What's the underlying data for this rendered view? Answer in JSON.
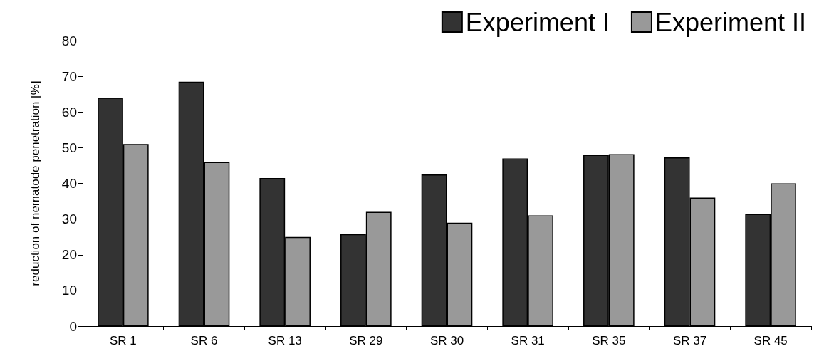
{
  "chart_data": {
    "type": "bar",
    "ylabel": "reduction of nematode penetration [%]",
    "categories": [
      "SR 1",
      "SR 6",
      "SR 13",
      "SR 29",
      "SR 30",
      "SR 31",
      "SR 35",
      "SR 37",
      "SR 45"
    ],
    "series": [
      {
        "name": "Experiment I",
        "color": "#333333",
        "values": [
          64,
          68.5,
          41.5,
          25.8,
          42.5,
          47,
          48,
          47.3,
          31.4
        ]
      },
      {
        "name": "Experiment II",
        "color": "#999999",
        "values": [
          51,
          46,
          25,
          32,
          29,
          31,
          48.2,
          36,
          40
        ]
      }
    ],
    "ylim": [
      0,
      80
    ],
    "yticks": [
      0,
      10,
      20,
      30,
      40,
      50,
      60,
      70,
      80
    ],
    "grid": false,
    "legend": "top right"
  }
}
